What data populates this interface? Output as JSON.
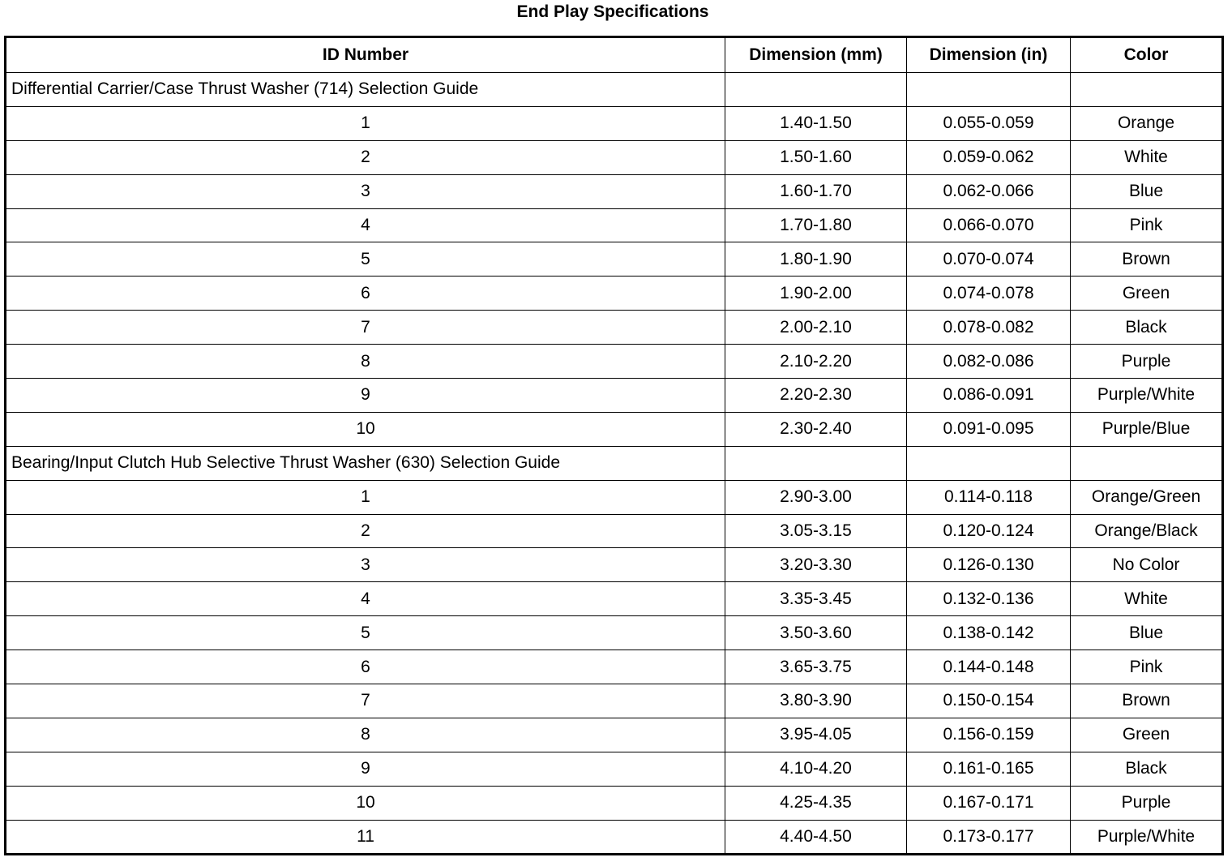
{
  "title": "End Play Specifications",
  "columns": [
    "ID Number",
    "Dimension (mm)",
    "Dimension (in)",
    "Color"
  ],
  "sections": [
    {
      "heading": "Differential Carrier/Case Thrust Washer (714) Selection Guide",
      "rows": [
        [
          "1",
          "1.40-1.50",
          "0.055-0.059",
          "Orange"
        ],
        [
          "2",
          "1.50-1.60",
          "0.059-0.062",
          "White"
        ],
        [
          "3",
          "1.60-1.70",
          "0.062-0.066",
          "Blue"
        ],
        [
          "4",
          "1.70-1.80",
          "0.066-0.070",
          "Pink"
        ],
        [
          "5",
          "1.80-1.90",
          "0.070-0.074",
          "Brown"
        ],
        [
          "6",
          "1.90-2.00",
          "0.074-0.078",
          "Green"
        ],
        [
          "7",
          "2.00-2.10",
          "0.078-0.082",
          "Black"
        ],
        [
          "8",
          "2.10-2.20",
          "0.082-0.086",
          "Purple"
        ],
        [
          "9",
          "2.20-2.30",
          "0.086-0.091",
          "Purple/White"
        ],
        [
          "10",
          "2.30-2.40",
          "0.091-0.095",
          "Purple/Blue"
        ]
      ]
    },
    {
      "heading": "Bearing/Input Clutch Hub Selective Thrust Washer (630) Selection Guide",
      "rows": [
        [
          "1",
          "2.90-3.00",
          "0.114-0.118",
          "Orange/Green"
        ],
        [
          "2",
          "3.05-3.15",
          "0.120-0.124",
          "Orange/Black"
        ],
        [
          "3",
          "3.20-3.30",
          "0.126-0.130",
          "No Color"
        ],
        [
          "4",
          "3.35-3.45",
          "0.132-0.136",
          "White"
        ],
        [
          "5",
          "3.50-3.60",
          "0.138-0.142",
          "Blue"
        ],
        [
          "6",
          "3.65-3.75",
          "0.144-0.148",
          "Pink"
        ],
        [
          "7",
          "3.80-3.90",
          "0.150-0.154",
          "Brown"
        ],
        [
          "8",
          "3.95-4.05",
          "0.156-0.159",
          "Green"
        ],
        [
          "9",
          "4.10-4.20",
          "0.161-0.165",
          "Black"
        ],
        [
          "10",
          "4.25-4.35",
          "0.167-0.171",
          "Purple"
        ],
        [
          "11",
          "4.40-4.50",
          "0.173-0.177",
          "Purple/White"
        ]
      ]
    }
  ]
}
